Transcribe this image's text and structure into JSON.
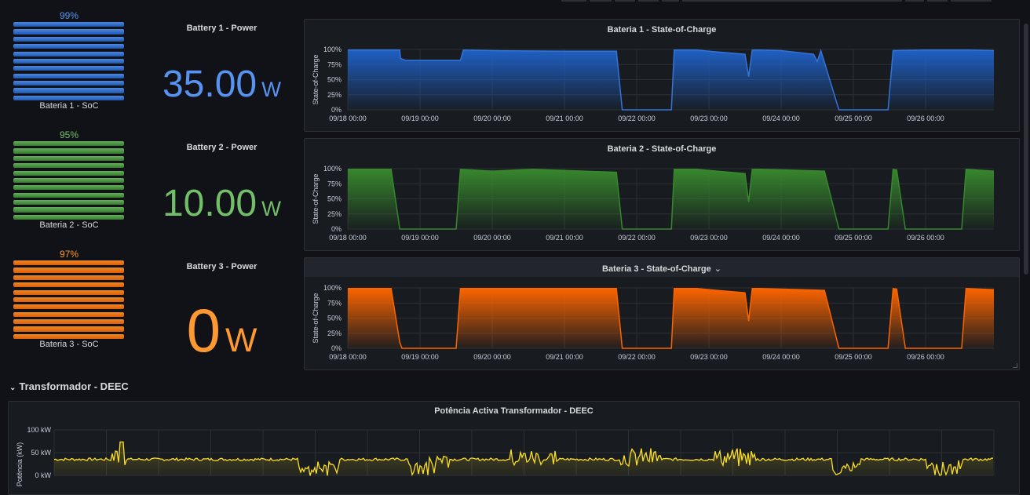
{
  "colors": {
    "blue": "#5794f2",
    "blue_line": "#1f60c4",
    "green": "#73bf69",
    "green_line": "#37872d",
    "orange": "#ff9830",
    "orange_line": "#fa6400",
    "yellow": "#fade2a"
  },
  "batteries": [
    {
      "gauge_pct": "99%",
      "gauge_label": "Bateria 1 - SoC",
      "gauge_value": 0.99,
      "power_title": "Battery 1 - Power",
      "power_value": "35.00",
      "power_unit": "W",
      "chart_title": "Bateria 1 - State-of-Charge",
      "color": "#5794f2",
      "line": "#1f60c4"
    },
    {
      "gauge_pct": "95%",
      "gauge_label": "Bateria 2 - SoC",
      "gauge_value": 0.95,
      "power_title": "Battery 2 - Power",
      "power_value": "10.00",
      "power_unit": "W",
      "chart_title": "Bateria 2 - State-of-Charge",
      "color": "#73bf69",
      "line": "#37872d"
    },
    {
      "gauge_pct": "97%",
      "gauge_label": "Bateria 3 - SoC",
      "gauge_value": 0.97,
      "power_title": "Battery 3 - Power",
      "power_value": "0",
      "power_unit": "W",
      "chart_title": "Bateria 3 - State-of-Charge",
      "chart_title_suffix": "⌄",
      "color": "#ff9830",
      "line": "#fa6400"
    }
  ],
  "section": {
    "title": "Transformador - DEEC",
    "chevron": "⌄"
  },
  "transformer": {
    "title": "Potência Activa Transformador - DEEC"
  },
  "chart_data": [
    {
      "type": "area",
      "title": "Bateria 1 - State-of-Charge",
      "ylabel": "State-of-Charge",
      "y_ticks": [
        "100%",
        "75%",
        "50%",
        "25%",
        "0%"
      ],
      "x_ticks": [
        "09/18 00:00",
        "09/19 00:00",
        "09/20 00:00",
        "09/21 00:00",
        "09/22 00:00",
        "09/23 00:00",
        "09/24 00:00",
        "09/25 00:00",
        "09/26 00:00"
      ],
      "ylim": [
        0,
        100
      ],
      "x_days": [
        0,
        0.72,
        0.73,
        0.8,
        1.56,
        1.6,
        2.0,
        3.0,
        3.72,
        3.8,
        4.48,
        4.52,
        4.84,
        5.0,
        5.5,
        5.55,
        5.6,
        5.7,
        6.0,
        6.45,
        6.5,
        6.55,
        6.8,
        7.48,
        7.55,
        8.0,
        8.6,
        9.0
      ],
      "values": [
        99,
        99,
        85,
        82,
        82,
        99,
        98,
        97,
        97,
        0,
        0,
        99,
        99,
        97,
        92,
        55,
        99,
        99,
        98,
        92,
        80,
        98,
        0,
        0,
        98,
        99,
        99,
        98
      ]
    },
    {
      "type": "area",
      "title": "Bateria 2 - State-of-Charge",
      "ylabel": "State-of-Charge",
      "y_ticks": [
        "100%",
        "75%",
        "50%",
        "25%",
        "0%"
      ],
      "x_ticks": [
        "09/18 00:00",
        "09/19 00:00",
        "09/20 00:00",
        "09/21 00:00",
        "09/22 00:00",
        "09/23 00:00",
        "09/24 00:00",
        "09/25 00:00",
        "09/26 00:00"
      ],
      "ylim": [
        0,
        100
      ],
      "x_days": [
        0,
        0.6,
        0.72,
        1.5,
        1.56,
        2.0,
        2.56,
        3.0,
        3.72,
        3.8,
        4.48,
        4.52,
        4.84,
        5.0,
        5.5,
        5.55,
        5.6,
        5.7,
        6.0,
        6.6,
        6.8,
        7.48,
        7.55,
        7.6,
        7.72,
        8.5,
        8.56,
        9.0
      ],
      "values": [
        99,
        99,
        0,
        0,
        99,
        96,
        99,
        97,
        94,
        0,
        0,
        99,
        99,
        97,
        92,
        45,
        99,
        99,
        98,
        96,
        0,
        0,
        99,
        98,
        0,
        0,
        99,
        96
      ]
    },
    {
      "type": "area",
      "title": "Bateria 3 - State-of-Charge",
      "ylabel": "State-of-Charge",
      "y_ticks": [
        "100%",
        "75%",
        "50%",
        "25%",
        "0%"
      ],
      "x_ticks": [
        "09/18 00:00",
        "09/19 00:00",
        "09/20 00:00",
        "09/21 00:00",
        "09/22 00:00",
        "09/23 00:00",
        "09/24 00:00",
        "09/25 00:00",
        "09/26 00:00"
      ],
      "ylim": [
        0,
        100
      ],
      "x_days": [
        0,
        0.6,
        0.72,
        0.75,
        1.5,
        1.56,
        2.0,
        3.0,
        3.72,
        3.8,
        4.48,
        4.52,
        4.84,
        5.0,
        5.5,
        5.55,
        5.6,
        5.7,
        6.0,
        6.6,
        6.8,
        7.48,
        7.55,
        7.6,
        7.72,
        8.5,
        8.56,
        9.0
      ],
      "values": [
        99,
        99,
        10,
        0,
        0,
        99,
        99,
        99,
        99,
        0,
        0,
        99,
        99,
        97,
        92,
        45,
        99,
        99,
        98,
        96,
        0,
        0,
        99,
        98,
        0,
        0,
        99,
        97
      ]
    },
    {
      "type": "line",
      "title": "Potência Activa Transformador - DEEC",
      "ylabel": "Potência (kW)",
      "y_ticks": [
        "100 kW",
        "50 kW",
        "0 kW"
      ],
      "ylim": [
        -20,
        100
      ]
    }
  ]
}
